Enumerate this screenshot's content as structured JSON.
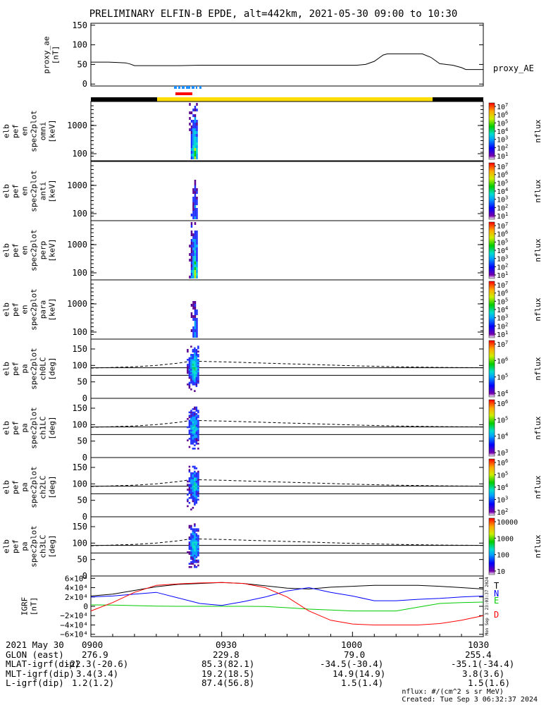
{
  "title": "PRELIMINARY ELFIN-B EPDE, alt=442km, 2021-05-30 09:00 to 10:30",
  "chart_data": [
    {
      "type": "line",
      "id": "proxy_ae",
      "ylabel": [
        "proxy_ae",
        "[nT]"
      ],
      "ylim": [
        -5,
        155
      ],
      "yticks": [
        0,
        50,
        100,
        150
      ],
      "legend": "proxy_AE",
      "x_minutes": [
        0,
        2,
        4,
        6,
        8,
        9,
        10,
        20,
        25,
        30,
        40,
        50,
        55,
        59,
        61,
        63,
        65,
        67,
        68,
        70,
        72,
        76,
        78,
        80,
        83,
        85,
        86,
        90
      ],
      "values": [
        56,
        56,
        56,
        55,
        54,
        51,
        47,
        47,
        48,
        48,
        48,
        48,
        48,
        48,
        48,
        50,
        58,
        74,
        77,
        77,
        77,
        77,
        68,
        52,
        48,
        42,
        37,
        37
      ]
    },
    {
      "type": "heatmap",
      "id": "spec_omni",
      "ylabel": [
        "elb",
        "pef",
        "en",
        "spec2plot",
        "omni",
        "[keV]"
      ],
      "yscale": "log",
      "ytick_labels": [
        "1000",
        "100"
      ],
      "colorbar": {
        "label": "nflux",
        "tick_labels": [
          "10^7",
          "10^6",
          "10^5",
          "10^4",
          "10^3",
          "10^2",
          "10^1"
        ]
      },
      "active_minutes": [
        22.5,
        24.5
      ]
    },
    {
      "type": "heatmap",
      "id": "spec_anti",
      "ylabel": [
        "elb",
        "pef",
        "en",
        "spec2plot",
        "anti",
        "[keV]"
      ],
      "yscale": "log",
      "ytick_labels": [
        "1000",
        "100"
      ],
      "colorbar": {
        "label": "nflux",
        "tick_labels": [
          "10^7",
          "10^6",
          "10^5",
          "10^4",
          "10^3",
          "10^2",
          "10^1"
        ]
      },
      "active_minutes": [
        22.5,
        24.5
      ]
    },
    {
      "type": "heatmap",
      "id": "spec_perp",
      "ylabel": [
        "elb",
        "pef",
        "en",
        "spec2plot",
        "perp",
        "[keV]"
      ],
      "yscale": "log",
      "ytick_labels": [
        "1000",
        "100"
      ],
      "colorbar": {
        "label": "nflux",
        "tick_labels": [
          "10^7",
          "10^6",
          "10^5",
          "10^4",
          "10^3",
          "10^2",
          "10^1"
        ]
      },
      "active_minutes": [
        22.5,
        24.5
      ]
    },
    {
      "type": "heatmap",
      "id": "spec_para",
      "ylabel": [
        "elb",
        "pef",
        "en",
        "spec2plot",
        "para",
        "[keV]"
      ],
      "yscale": "log",
      "ytick_labels": [
        "1000",
        "100"
      ],
      "colorbar": {
        "label": "nflux",
        "tick_labels": [
          "10^7",
          "10^6",
          "10^5",
          "10^4",
          "10^3",
          "10^2",
          "10^1"
        ]
      },
      "active_minutes": [
        22.5,
        24.5
      ]
    },
    {
      "type": "heatmap",
      "id": "pa_ch0",
      "ylabel": [
        "elb",
        "pef",
        "pa",
        "spec2plot",
        "ch0LC",
        "[deg]"
      ],
      "ylim": [
        0,
        180
      ],
      "yticks": [
        0,
        50,
        100,
        150
      ],
      "colorbar": {
        "label": "nflux",
        "tick_labels": [
          "10^7",
          "10^6",
          "10^5",
          "10^4"
        ]
      },
      "lc_line": 93,
      "alc_line": 70,
      "lc_curve_minutes": [
        0,
        10,
        15,
        20,
        23,
        30,
        40,
        50,
        60,
        70,
        80,
        90
      ],
      "lc_curve_deg": [
        92,
        96,
        100,
        107,
        113,
        111,
        107,
        103,
        99,
        96,
        94,
        93
      ],
      "active_minutes": [
        22,
        25
      ]
    },
    {
      "type": "heatmap",
      "id": "pa_ch1",
      "ylabel": [
        "elb",
        "pef",
        "pa",
        "spec2plot",
        "ch1LC",
        "[deg]"
      ],
      "ylim": [
        0,
        180
      ],
      "yticks": [
        0,
        50,
        100,
        150
      ],
      "colorbar": {
        "label": "nflux",
        "tick_labels": [
          "10^6",
          "10^5",
          "10^4",
          "10^3"
        ]
      },
      "lc_line": 93,
      "alc_line": 70,
      "lc_curve_minutes": [
        0,
        10,
        15,
        20,
        23,
        30,
        40,
        50,
        60,
        70,
        80,
        90
      ],
      "lc_curve_deg": [
        92,
        96,
        100,
        107,
        113,
        111,
        107,
        103,
        99,
        96,
        94,
        93
      ],
      "active_minutes": [
        22,
        25
      ]
    },
    {
      "type": "heatmap",
      "id": "pa_ch2",
      "ylabel": [
        "elb",
        "pef",
        "pa",
        "spec2plot",
        "ch2LC",
        "[deg]"
      ],
      "ylim": [
        0,
        180
      ],
      "yticks": [
        0,
        50,
        100,
        150
      ],
      "colorbar": {
        "label": "nflux",
        "tick_labels": [
          "10^6",
          "10^5",
          "10^4",
          "10^3",
          "10^2"
        ]
      },
      "lc_line": 93,
      "alc_line": 70,
      "lc_curve_minutes": [
        0,
        10,
        15,
        20,
        23,
        30,
        40,
        50,
        60,
        70,
        80,
        90
      ],
      "lc_curve_deg": [
        92,
        96,
        100,
        107,
        113,
        111,
        107,
        103,
        99,
        96,
        94,
        93
      ],
      "active_minutes": [
        22,
        25
      ]
    },
    {
      "type": "heatmap",
      "id": "pa_ch3",
      "ylabel": [
        "elb",
        "pef",
        "pa",
        "spec2plot",
        "ch3LC",
        "[deg]"
      ],
      "ylim": [
        0,
        180
      ],
      "yticks": [
        0,
        50,
        100,
        150
      ],
      "colorbar": {
        "label": "nflux",
        "tick_labels": [
          "10000",
          "1000",
          "100",
          "10"
        ]
      },
      "lc_line": 93,
      "alc_line": 70,
      "lc_curve_minutes": [
        0,
        10,
        15,
        20,
        23,
        30,
        40,
        50,
        60,
        70,
        80,
        90
      ],
      "lc_curve_deg": [
        92,
        96,
        100,
        107,
        113,
        111,
        107,
        103,
        99,
        96,
        94,
        93
      ],
      "active_minutes": [
        22,
        25
      ]
    },
    {
      "type": "line",
      "id": "igrf",
      "ylabel": [
        "IGRF",
        "[nT]"
      ],
      "ylim": [
        -65000,
        65000
      ],
      "ytick_labels": [
        "6×10⁴",
        "4×10⁴",
        "2×10⁴",
        "0",
        "−2×10⁴",
        "−4×10⁴",
        "−6×10⁴"
      ],
      "yticks": [
        60000,
        40000,
        20000,
        0,
        -20000,
        -40000,
        -60000
      ],
      "side_note": "Mon Sep  3 23:03:37 2024",
      "x_minutes": [
        0,
        5,
        10,
        15,
        20,
        25,
        30,
        35,
        40,
        45,
        50,
        55,
        60,
        65,
        70,
        75,
        80,
        85,
        90
      ],
      "series": [
        {
          "name": "T",
          "color": "#000000",
          "values": [
            22000,
            26000,
            34000,
            42000,
            47000,
            49000,
            51000,
            49000,
            44000,
            39000,
            37000,
            41000,
            43000,
            45000,
            45000,
            45000,
            43000,
            40000,
            37000
          ]
        },
        {
          "name": "N",
          "color": "#0000ff",
          "values": [
            20000,
            22000,
            26000,
            30000,
            18000,
            6000,
            2000,
            10000,
            20000,
            33000,
            40000,
            30000,
            22000,
            12000,
            12000,
            15000,
            17000,
            20000,
            22000
          ]
        },
        {
          "name": "E",
          "color": "#00cc00",
          "values": [
            3000,
            2500,
            1500,
            500,
            0,
            0,
            0,
            0,
            -500,
            -3000,
            -6000,
            -8000,
            -10000,
            -10000,
            -10000,
            -2000,
            6000,
            8000,
            9000
          ]
        },
        {
          "name": "D",
          "color": "#ff0000",
          "values": [
            -10000,
            8000,
            30000,
            45000,
            48000,
            50000,
            51000,
            49000,
            40000,
            20000,
            -10000,
            -30000,
            -38000,
            -40000,
            -40000,
            -40000,
            -37000,
            -30000,
            -20000
          ]
        }
      ]
    }
  ],
  "colors": {
    "phase_yellow": "#ffdd00",
    "phase_black": "#000000",
    "sci_blue": "#1e90ff",
    "sci_red": "#ff0000"
  },
  "footer": {
    "rows": [
      {
        "label": "2021 May 30",
        "cols": [
          "0900",
          "0930",
          "1000",
          "1030"
        ]
      },
      {
        "label": "GLON (east)",
        "cols": [
          "276.9",
          "229.8",
          "79.0",
          "255.4"
        ]
      },
      {
        "label": "MLAT-igrf(dip)",
        "cols": [
          "-22.3(-20.6)",
          "85.3(82.1)",
          "-34.5(-30.4)",
          "-35.1(-34.4)"
        ]
      },
      {
        "label": "MLT-igrf(dip)",
        "cols": [
          "3.4(3.4)",
          "19.2(18.5)",
          "14.9(14.9)",
          "3.8(3.6)"
        ]
      },
      {
        "label": "L-igrf(dip)",
        "cols": [
          "1.2(1.2)",
          "87.4(56.8)",
          "1.5(1.4)",
          "1.5(1.6)"
        ]
      }
    ],
    "units_note": "nflux: #/(cm^2 s sr MeV)",
    "created": "Created: Tue Sep  3 06:32:37 2024"
  }
}
